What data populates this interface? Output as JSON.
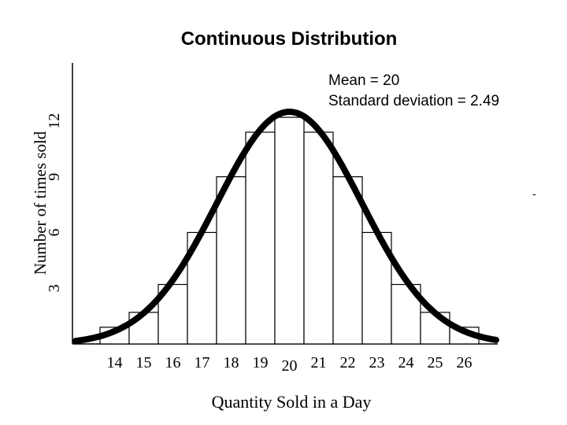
{
  "chart_data": {
    "type": "bar",
    "title": "Continuous Distribution",
    "annotations": [
      "Mean = 20",
      "Standard deviation = 2.49"
    ],
    "xlabel": "Quantity Sold in a Day",
    "ylabel": "Number of times sold",
    "categories": [
      "14",
      "15",
      "16",
      "17",
      "18",
      "19",
      "20",
      "21",
      "22",
      "23",
      "24",
      "25",
      "26"
    ],
    "values": [
      0.9,
      1.7,
      3.2,
      6.0,
      9.0,
      11.4,
      12.2,
      11.4,
      9.0,
      6.0,
      3.2,
      1.7,
      0.9
    ],
    "yticks": [
      "3",
      "6",
      "9",
      "12"
    ],
    "ylim": [
      0,
      15
    ],
    "curve": {
      "type": "normal",
      "mean": 20,
      "sd": 2.49,
      "peak": 12.5
    },
    "stray_mark": "-",
    "grid": false,
    "legend": "none"
  }
}
